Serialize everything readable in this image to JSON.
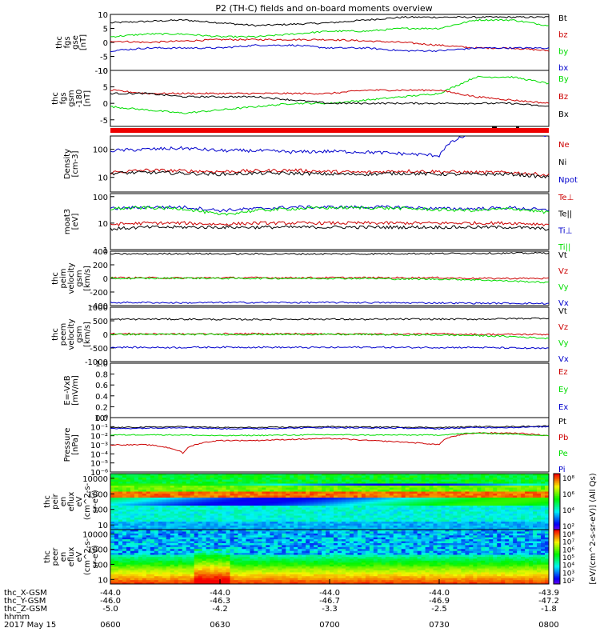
{
  "title": "P2 (TH-C) fields and on-board moments overview",
  "chart_data": [
    {
      "type": "line",
      "ylabel": [
        "thc",
        "fgs",
        "gse",
        "[nT]"
      ],
      "ylim": [
        -10,
        10
      ],
      "ytick_labels": [
        "10",
        "5",
        "0",
        "-5",
        "-10"
      ],
      "yticks": [
        10,
        5,
        0,
        -5,
        -10
      ],
      "series": [
        {
          "name": "Bt",
          "color": "#000000",
          "values": [
            7,
            7.5,
            8,
            7,
            6,
            6.5,
            7,
            8,
            9,
            9,
            9,
            9,
            9
          ]
        },
        {
          "name": "bz",
          "color": "#cc0000",
          "values": [
            0.5,
            0,
            0.5,
            1,
            1,
            1,
            1,
            0.5,
            0,
            -1,
            -2,
            -2,
            -3
          ]
        },
        {
          "name": "by",
          "color": "#00dd00",
          "values": [
            2,
            3,
            3,
            2,
            2,
            3,
            4,
            4,
            5,
            5,
            8,
            8,
            6
          ]
        },
        {
          "name": "bx",
          "color": "#0000cc",
          "values": [
            -3,
            -2,
            -2,
            -2,
            -1,
            -1,
            -2,
            -2,
            -3,
            -3,
            -2,
            -2,
            -2
          ]
        }
      ]
    },
    {
      "type": "line",
      "ylabel": [
        "thc",
        "fgs",
        "gsm",
        "-180",
        "[nT]"
      ],
      "ylim": [
        -7,
        10
      ],
      "ytick_labels": [
        "10",
        "5",
        "0",
        "-5"
      ],
      "yticks": [
        10,
        5,
        0,
        -5
      ],
      "series": [
        {
          "name": "By",
          "color": "#00dd00",
          "values": [
            -1,
            -2,
            -3,
            -2,
            -1,
            0,
            0,
            1,
            2,
            3,
            8,
            8,
            6
          ]
        },
        {
          "name": "Bz",
          "color": "#cc0000",
          "values": [
            4,
            3,
            3,
            3,
            3,
            3,
            3,
            4,
            4,
            4,
            2,
            1,
            0
          ]
        },
        {
          "name": "Bx",
          "color": "#000000",
          "values": [
            3,
            3,
            2,
            2,
            2,
            1,
            0,
            0,
            0,
            0,
            0,
            0,
            -1
          ]
        }
      ]
    },
    {
      "type": "line",
      "ylabel": [
        "Density",
        "[cm-3]"
      ],
      "yscale": "log",
      "ylim": [
        3,
        300
      ],
      "ytick_labels": [
        "100",
        "10"
      ],
      "yticks": [
        100,
        10
      ],
      "series": [
        {
          "name": "Ne",
          "color": "#cc0000",
          "values": [
            15,
            18,
            17,
            16,
            17,
            18,
            16,
            15,
            17,
            16,
            15,
            15,
            12
          ]
        },
        {
          "name": "Ni",
          "color": "#000000",
          "values": [
            14,
            15,
            14,
            13,
            14,
            14,
            13,
            13,
            14,
            13,
            13,
            13,
            10
          ]
        },
        {
          "name": "Npot",
          "color": "#0000cc",
          "values": [
            90,
            100,
            110,
            90,
            90,
            80,
            85,
            80,
            70,
            60,
            400,
            400,
            300
          ]
        }
      ]
    },
    {
      "type": "line",
      "ylabel": [
        "moat3",
        "[eV]"
      ],
      "yscale": "log",
      "ylim": [
        1,
        130
      ],
      "ytick_labels": [
        "100",
        "10",
        "1"
      ],
      "yticks": [
        100,
        10,
        1
      ],
      "series": [
        {
          "name": "Te⊥",
          "color": "#cc0000",
          "values": [
            9,
            10,
            10,
            9,
            10,
            10,
            10,
            10,
            10,
            10,
            10,
            10,
            9
          ]
        },
        {
          "name": "Te||",
          "color": "#000000",
          "values": [
            6,
            7,
            7,
            7,
            7,
            7,
            7,
            7,
            7,
            7,
            7,
            7,
            6
          ]
        },
        {
          "name": "Ti⊥",
          "color": "#0000cc",
          "values": [
            35,
            40,
            40,
            30,
            35,
            40,
            40,
            40,
            40,
            35,
            35,
            38,
            30
          ]
        },
        {
          "name": "Ti||",
          "color": "#00dd00",
          "values": [
            35,
            38,
            35,
            20,
            30,
            35,
            38,
            38,
            36,
            32,
            30,
            35,
            25
          ]
        }
      ]
    },
    {
      "type": "line",
      "ylabel": [
        "thc",
        "peim",
        "velocity",
        "gsm",
        "[km/s]"
      ],
      "ylim": [
        -400,
        400
      ],
      "ytick_labels": [
        "400",
        "200",
        "0",
        "-200",
        "-400"
      ],
      "yticks": [
        400,
        200,
        0,
        -200,
        -400
      ],
      "series": [
        {
          "name": "Vt",
          "color": "#000000",
          "values": [
            360,
            360,
            365,
            360,
            360,
            360,
            360,
            360,
            365,
            365,
            370,
            370,
            375
          ]
        },
        {
          "name": "Vz",
          "color": "#cc0000",
          "values": [
            10,
            10,
            5,
            10,
            10,
            10,
            10,
            10,
            10,
            10,
            0,
            0,
            0
          ]
        },
        {
          "name": "Vy",
          "color": "#00dd00",
          "values": [
            0,
            0,
            5,
            0,
            0,
            0,
            0,
            0,
            -10,
            -10,
            -20,
            -40,
            -60
          ]
        },
        {
          "name": "Vx",
          "color": "#0000cc",
          "values": [
            -355,
            -355,
            -360,
            -355,
            -355,
            -355,
            -355,
            -355,
            -360,
            -360,
            -365,
            -365,
            -370
          ]
        }
      ]
    },
    {
      "type": "line",
      "ylabel": [
        "thc",
        "peem",
        "velocity",
        "gsm",
        "[km/s]"
      ],
      "ylim": [
        -1000,
        1000
      ],
      "ytick_labels": [
        "1000",
        "500",
        "0",
        "-500",
        "-1000"
      ],
      "yticks": [
        1000,
        500,
        0,
        -500,
        -1000
      ],
      "series": [
        {
          "name": "Vt",
          "color": "#000000",
          "values": [
            550,
            560,
            560,
            550,
            550,
            560,
            560,
            550,
            560,
            560,
            560,
            580,
            600
          ]
        },
        {
          "name": "Vz",
          "color": "#cc0000",
          "values": [
            20,
            20,
            10,
            20,
            20,
            20,
            20,
            10,
            10,
            20,
            0,
            0,
            0
          ]
        },
        {
          "name": "Vy",
          "color": "#00dd00",
          "values": [
            0,
            0,
            0,
            0,
            0,
            0,
            0,
            0,
            -20,
            -20,
            -40,
            -80,
            -150
          ]
        },
        {
          "name": "Vx",
          "color": "#0000cc",
          "values": [
            -470,
            -480,
            -480,
            -470,
            -470,
            -480,
            -480,
            -470,
            -480,
            -480,
            -480,
            -500,
            -520
          ]
        }
      ]
    },
    {
      "type": "line",
      "ylabel": [
        "E=-VxB",
        "[mV/m]"
      ],
      "ylim": [
        0,
        1
      ],
      "ytick_labels": [
        "1.0",
        "0.8",
        "0.6",
        "0.4",
        "0.2",
        "0.0"
      ],
      "yticks": [
        1.0,
        0.8,
        0.6,
        0.4,
        0.2,
        0.0
      ],
      "series": [
        {
          "name": "Ez",
          "color": "#cc0000",
          "values": []
        },
        {
          "name": "Ey",
          "color": "#00dd00",
          "values": []
        },
        {
          "name": "Ex",
          "color": "#0000cc",
          "values": []
        }
      ]
    },
    {
      "type": "line",
      "ylabel": [
        "Pressure",
        "[nPa]"
      ],
      "yscale": "log",
      "ylim": [
        1e-06,
        1
      ],
      "ytick_labels": [
        "10⁰",
        "10⁻¹",
        "10⁻²",
        "10⁻³",
        "10⁻⁴",
        "10⁻⁵",
        "10⁻⁶"
      ],
      "yticks": [
        1,
        0.1,
        0.01,
        0.001,
        0.0001,
        1e-05,
        1e-06
      ],
      "series": [
        {
          "name": "Pt",
          "color": "#000000",
          "values": [
            0.08,
            0.09,
            0.1,
            0.08,
            0.08,
            0.09,
            0.1,
            0.09,
            0.09,
            0.08,
            0.1,
            0.1,
            0.12
          ]
        },
        {
          "name": "Pb",
          "color": "#cc0000",
          "values": [
            0.001,
            0.001,
            0.0001,
            0.003,
            0.003,
            0.004,
            0.005,
            0.003,
            0.002,
            0.001,
            0.02,
            0.02,
            0.01
          ]
        },
        {
          "name": "Pe",
          "color": "#00dd00",
          "values": [
            0.012,
            0.013,
            0.012,
            0.01,
            0.011,
            0.012,
            0.013,
            0.012,
            0.012,
            0.012,
            0.02,
            0.015,
            0.01
          ]
        },
        {
          "name": "Pi",
          "color": "#0000cc",
          "values": [
            0.06,
            0.07,
            0.08,
            0.06,
            0.06,
            0.07,
            0.08,
            0.07,
            0.07,
            0.06,
            0.08,
            0.08,
            0.1
          ]
        }
      ]
    },
    {
      "type": "heatmap",
      "ylabel": [
        "thc",
        "peir",
        "en",
        "eflux",
        "eV",
        "(cm^2-s-",
        "sr-eV)"
      ],
      "yscale": "log",
      "ylim": [
        5,
        20000
      ],
      "ytick_labels": [
        "10000",
        "1000",
        "100",
        "10"
      ],
      "yticks": [
        10000,
        1000,
        100,
        10
      ]
    },
    {
      "type": "heatmap",
      "ylabel": [
        "thc",
        "peer",
        "en",
        "eflux",
        "eV",
        "(cm^2-s-",
        "sr-eV)"
      ],
      "yscale": "log",
      "ylim": [
        5,
        20000
      ],
      "ytick_labels": [
        "10000",
        "1000",
        "100",
        "10"
      ],
      "yticks": [
        10000,
        1000,
        100,
        10
      ]
    }
  ],
  "colorbar": {
    "ylabel": "[eV/(cm^2-s-sr-eV)] (All Qs)",
    "upper_ticks": [
      "10⁸",
      "10⁶",
      "10⁴",
      "10²"
    ],
    "lower_ticks": [
      "10⁸",
      "10⁷",
      "10⁶",
      "10⁵",
      "10⁴",
      "10³",
      "10²"
    ]
  },
  "xaxis": {
    "tick_labels": [
      "0600",
      "0630",
      "0700",
      "0730",
      "0800"
    ],
    "row_labels": [
      "thc_X-GSM",
      "thc_Y-GSM",
      "thc_Z-GSM",
      "hhmm",
      "2017 May 15"
    ],
    "rows": [
      [
        "-44.0",
        "-44.0",
        "-44.0",
        "-44.0",
        "-43.9"
      ],
      [
        "-46.0",
        "-46.3",
        "-46.7",
        "-46.9",
        "-47.2"
      ],
      [
        "-5.0",
        "-4.2",
        "-3.3",
        "-2.5",
        "-1.8"
      ]
    ]
  }
}
